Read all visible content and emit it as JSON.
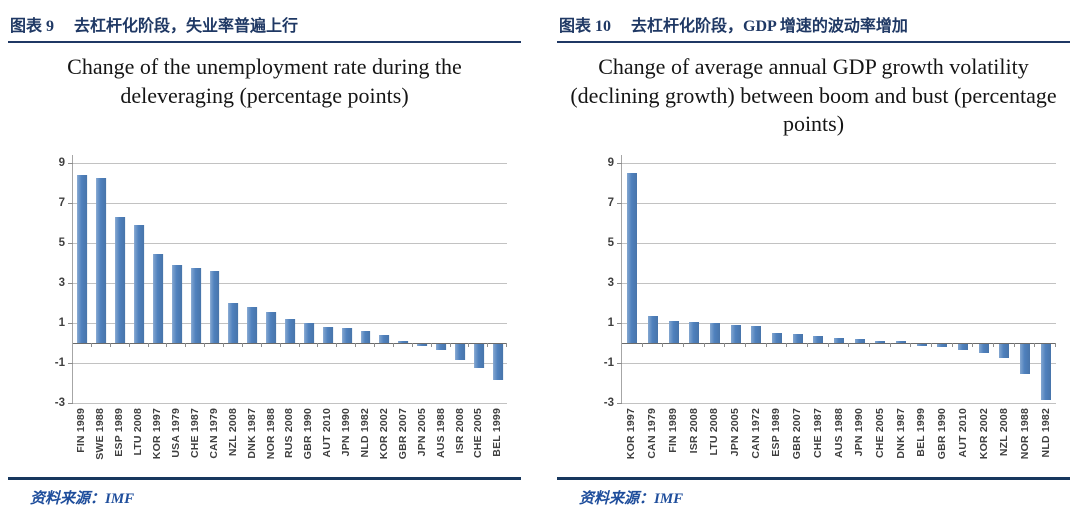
{
  "colors": {
    "accent_navy": "#1F3864",
    "source_rule_navy": "#17375E",
    "source_text_blue": "#1F4E9C",
    "bar_blue": "#4F81BD"
  },
  "figures": [
    {
      "label": "图表 9",
      "heading": "去杠杆化阶段，失业率普遍上行",
      "title": "Change of the unemployment rate during the deleveraging (percentage points)",
      "source": "资料来源：IMF",
      "chart_data": {
        "type": "bar",
        "title": "Change of the unemployment rate during the deleveraging (percentage points)",
        "xlabel": "",
        "ylabel": "",
        "categories": [
          "FIN 1989",
          "SWE 1988",
          "ESP 1989",
          "LTU 2008",
          "KOR 1997",
          "USA 1979",
          "CHE 1987",
          "CAN 1979",
          "NZL 2008",
          "DNK 1987",
          "NOR 1988",
          "RUS 2008",
          "GBR 1990",
          "AUT 2010",
          "JPN 1990",
          "NLD 1982",
          "KOR 2002",
          "GBR 2007",
          "JPN 2005",
          "AUS 1988",
          "ISR 2008",
          "CHE 2005",
          "BEL 1999"
        ],
        "values": [
          8.4,
          8.25,
          6.3,
          5.9,
          4.45,
          3.9,
          3.75,
          3.6,
          2.0,
          1.8,
          1.55,
          1.2,
          1.0,
          0.8,
          0.75,
          0.6,
          0.4,
          0.1,
          -0.1,
          -0.3,
          -0.8,
          -1.2,
          -1.8
        ],
        "yticks": [
          9,
          7,
          5,
          3,
          1,
          -1,
          -3
        ],
        "ylim": [
          -3,
          9.4
        ],
        "grid": true,
        "legend": false,
        "bar_color": "#4F81BD"
      }
    },
    {
      "label": "图表 10",
      "heading": "去杠杆化阶段，GDP 增速的波动率增加",
      "title": "Change of average annual GDP growth volatility (declining growth) between boom and bust (percentage points)",
      "source": "资料来源：IMF",
      "chart_data": {
        "type": "bar",
        "title": "Change of average annual GDP growth volatility (declining growth) between boom and bust (percentage points)",
        "xlabel": "",
        "ylabel": "",
        "categories": [
          "KOR 1997",
          "CAN 1979",
          "FIN 1989",
          "ISR 2008",
          "LTU 2008",
          "JPN 2005",
          "CAN 1972",
          "ESP 1989",
          "GBR 2007",
          "CHE 1987",
          "AUS 1988",
          "JPN 1990",
          "CHE 2005",
          "DNK 1987",
          "BEL 1999",
          "GBR 1990",
          "AUT 2010",
          "KOR 2002",
          "NZL 2008",
          "NOR 1988",
          "NLD 1982"
        ],
        "values": [
          8.5,
          1.35,
          1.1,
          1.05,
          1.0,
          0.9,
          0.85,
          0.5,
          0.45,
          0.35,
          0.25,
          0.2,
          0.1,
          0.1,
          -0.1,
          -0.15,
          -0.3,
          -0.45,
          -0.7,
          -1.5,
          -2.8
        ],
        "yticks": [
          9,
          7,
          5,
          3,
          1,
          -1,
          -3
        ],
        "ylim": [
          -3,
          9.4
        ],
        "grid": true,
        "legend": false,
        "bar_color": "#4F81BD"
      }
    }
  ]
}
